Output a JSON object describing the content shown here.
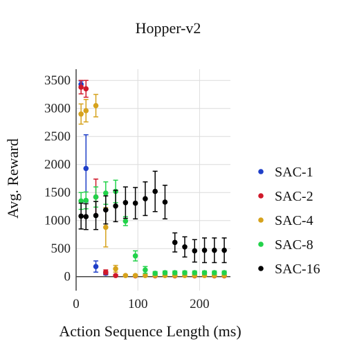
{
  "chart_data": {
    "type": "scatter",
    "title": "Hopper-v2",
    "xlabel": "Action Sequence Length (ms)",
    "ylabel": "Avg. Reward",
    "xlim": [
      0,
      250
    ],
    "ylim": [
      -250,
      3700
    ],
    "x_ticks": [
      0,
      100,
      200
    ],
    "y_ticks": [
      0,
      500,
      1000,
      1500,
      2000,
      2500,
      3000,
      3500
    ],
    "grid": true,
    "legend_position": "right",
    "error_bars": true,
    "series": [
      {
        "name": "SAC-1",
        "color": "#1f3fc8",
        "points": [
          {
            "x": 8,
            "y": 3430,
            "err": 60
          },
          {
            "x": 16,
            "y": 1930,
            "err": 600
          },
          {
            "x": 32,
            "y": 180,
            "err": 100
          },
          {
            "x": 48,
            "y": 60,
            "err": 30
          }
        ]
      },
      {
        "name": "SAC-2",
        "color": "#d0192a",
        "points": [
          {
            "x": 8,
            "y": 3380,
            "err": 120
          },
          {
            "x": 16,
            "y": 3350,
            "err": 150
          },
          {
            "x": 32,
            "y": 1420,
            "err": 320
          },
          {
            "x": 48,
            "y": 80,
            "err": 40
          },
          {
            "x": 64,
            "y": 20,
            "err": 15
          },
          {
            "x": 96,
            "y": 15,
            "err": 10
          },
          {
            "x": 128,
            "y": 15,
            "err": 10
          },
          {
            "x": 160,
            "y": 15,
            "err": 10
          },
          {
            "x": 192,
            "y": 15,
            "err": 10
          },
          {
            "x": 224,
            "y": 15,
            "err": 10
          },
          {
            "x": 240,
            "y": 15,
            "err": 10
          }
        ]
      },
      {
        "name": "SAC-4",
        "color": "#d6a21c",
        "points": [
          {
            "x": 8,
            "y": 2900,
            "err": 180
          },
          {
            "x": 16,
            "y": 2960,
            "err": 200
          },
          {
            "x": 32,
            "y": 3050,
            "err": 200
          },
          {
            "x": 48,
            "y": 880,
            "err": 350
          },
          {
            "x": 64,
            "y": 140,
            "err": 60
          },
          {
            "x": 80,
            "y": 20,
            "err": 15
          },
          {
            "x": 96,
            "y": 20,
            "err": 15
          },
          {
            "x": 112,
            "y": 20,
            "err": 15
          },
          {
            "x": 128,
            "y": 20,
            "err": 15
          },
          {
            "x": 144,
            "y": 20,
            "err": 15
          },
          {
            "x": 160,
            "y": 20,
            "err": 15
          },
          {
            "x": 176,
            "y": 20,
            "err": 15
          },
          {
            "x": 192,
            "y": 20,
            "err": 15
          },
          {
            "x": 208,
            "y": 20,
            "err": 15
          },
          {
            "x": 224,
            "y": 20,
            "err": 15
          },
          {
            "x": 240,
            "y": 20,
            "err": 15
          }
        ]
      },
      {
        "name": "SAC-8",
        "color": "#22d24a",
        "points": [
          {
            "x": 8,
            "y": 1350,
            "err": 150
          },
          {
            "x": 16,
            "y": 1360,
            "err": 150
          },
          {
            "x": 32,
            "y": 1420,
            "err": 180
          },
          {
            "x": 48,
            "y": 1490,
            "err": 200
          },
          {
            "x": 64,
            "y": 1520,
            "err": 200
          },
          {
            "x": 80,
            "y": 990,
            "err": 80
          },
          {
            "x": 96,
            "y": 370,
            "err": 90
          },
          {
            "x": 112,
            "y": 120,
            "err": 60
          },
          {
            "x": 128,
            "y": 60,
            "err": 30
          },
          {
            "x": 144,
            "y": 70,
            "err": 30
          },
          {
            "x": 160,
            "y": 70,
            "err": 30
          },
          {
            "x": 176,
            "y": 70,
            "err": 30
          },
          {
            "x": 192,
            "y": 70,
            "err": 30
          },
          {
            "x": 208,
            "y": 70,
            "err": 30
          },
          {
            "x": 224,
            "y": 70,
            "err": 30
          },
          {
            "x": 240,
            "y": 70,
            "err": 30
          }
        ]
      },
      {
        "name": "SAC-16",
        "color": "#000000",
        "points": [
          {
            "x": 8,
            "y": 1080,
            "err": 230
          },
          {
            "x": 16,
            "y": 1070,
            "err": 230
          },
          {
            "x": 32,
            "y": 1090,
            "err": 250
          },
          {
            "x": 48,
            "y": 1190,
            "err": 250
          },
          {
            "x": 64,
            "y": 1260,
            "err": 280
          },
          {
            "x": 80,
            "y": 1320,
            "err": 280
          },
          {
            "x": 96,
            "y": 1310,
            "err": 280
          },
          {
            "x": 112,
            "y": 1390,
            "err": 300
          },
          {
            "x": 128,
            "y": 1520,
            "err": 360
          },
          {
            "x": 144,
            "y": 1330,
            "err": 300
          },
          {
            "x": 160,
            "y": 610,
            "err": 170
          },
          {
            "x": 176,
            "y": 530,
            "err": 180
          },
          {
            "x": 192,
            "y": 460,
            "err": 200
          },
          {
            "x": 208,
            "y": 470,
            "err": 220
          },
          {
            "x": 224,
            "y": 470,
            "err": 220
          },
          {
            "x": 240,
            "y": 470,
            "err": 220
          }
        ]
      }
    ]
  }
}
